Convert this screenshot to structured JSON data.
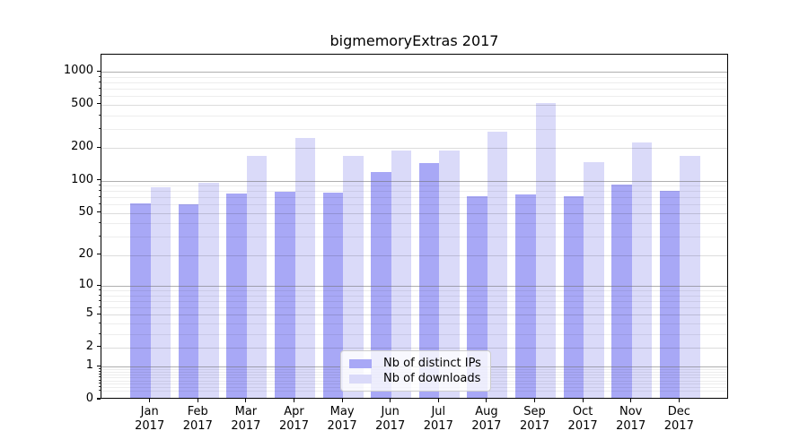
{
  "title": "bigmemoryExtras 2017",
  "legend": {
    "items": [
      {
        "label": "Nb of distinct IPs",
        "color": "#a8a8f6"
      },
      {
        "label": "Nb of downloads",
        "color": "#dadaf9"
      }
    ]
  },
  "chart_data": {
    "type": "bar",
    "title": "bigmemoryExtras 2017",
    "categories": [
      "Jan 2017",
      "Feb 2017",
      "Mar 2017",
      "Apr 2017",
      "May 2017",
      "Jun 2017",
      "Jul 2017",
      "Aug 2017",
      "Sep 2017",
      "Oct 2017",
      "Nov 2017",
      "Dec 2017"
    ],
    "series": [
      {
        "name": "Nb of distinct IPs",
        "color": "#a8a8f6",
        "values": [
          59,
          58,
          73,
          76,
          75,
          115,
          141,
          69,
          72,
          69,
          88,
          77
        ]
      },
      {
        "name": "Nb of downloads",
        "color": "#dadaf9",
        "values": [
          84,
          93,
          162,
          240,
          163,
          182,
          183,
          271,
          500,
          144,
          219,
          162
        ]
      }
    ],
    "y_scale": "log1p",
    "y_ticks": [
      0,
      1,
      2,
      5,
      10,
      20,
      50,
      100,
      200,
      500,
      1000
    ],
    "y_minor_ticks": [
      0.2,
      0.3,
      0.4,
      0.5,
      0.6,
      0.7,
      0.8,
      0.9,
      2,
      3,
      4,
      5,
      6,
      7,
      8,
      9,
      20,
      30,
      40,
      50,
      60,
      70,
      80,
      90,
      200,
      300,
      400,
      500,
      600,
      700,
      800,
      900
    ],
    "y_major_gridlines": [
      1,
      10,
      100,
      1000
    ],
    "ylim": [
      0,
      1413
    ],
    "grid": true,
    "legend_position": "lower center",
    "xlabel": "",
    "ylabel": ""
  }
}
